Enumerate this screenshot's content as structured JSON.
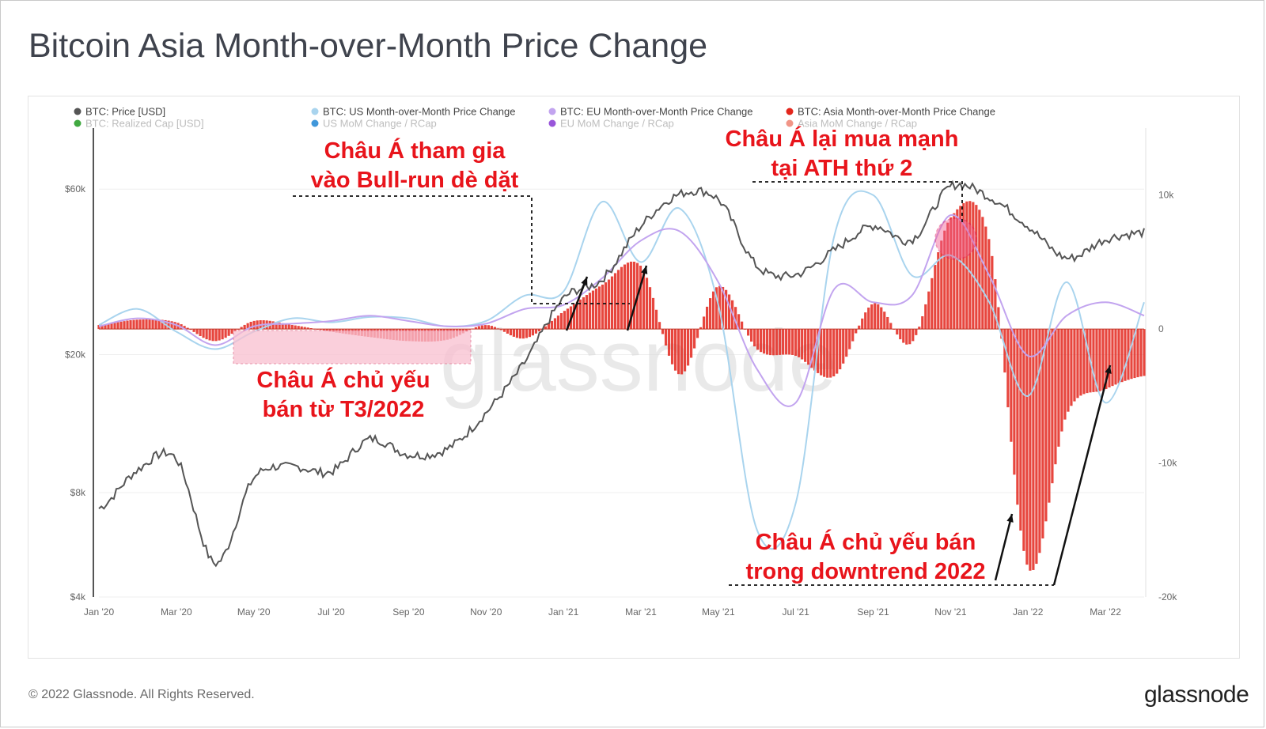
{
  "title": "Bitcoin Asia Month-over-Month Price Change",
  "footer": "© 2022 Glassnode. All Rights Reserved.",
  "brand": "glassnode",
  "watermark": "glassnode",
  "legend": [
    {
      "label": "BTC: Price [USD]",
      "color": "#555555",
      "faint": false
    },
    {
      "label": "BTC: Realized Cap [USD]",
      "color": "#2ca02c",
      "faint": true
    },
    {
      "label": "BTC: US Month-over-Month Price Change",
      "color": "#a9d4ee",
      "faint": false
    },
    {
      "label": "US MoM Change / RCap",
      "color": "#2b8cd6",
      "faint": true
    },
    {
      "label": "BTC: EU Month-over-Month Price Change",
      "color": "#c2a4ef",
      "faint": false
    },
    {
      "label": "EU MoM Change / RCap",
      "color": "#8e44d6",
      "faint": true
    },
    {
      "label": "BTC: Asia Month-over-Month Price Change",
      "color": "#e3261c",
      "faint": false
    },
    {
      "label": "Asia MoM Change / RCap",
      "color": "#f08a7a",
      "faint": true
    }
  ],
  "annotations": [
    {
      "lines": [
        "Châu Á tham gia",
        "vào Bull-run dè dặt"
      ]
    },
    {
      "lines": [
        "Châu Á lại mua mạnh",
        "tại ATH thứ 2"
      ]
    },
    {
      "lines": [
        "Châu Á chủ yếu",
        "bán từ T3/2022"
      ]
    },
    {
      "lines": [
        "Châu Á chủ yếu bán",
        "trong downtrend 2022"
      ]
    }
  ],
  "chart_data": {
    "type": "line",
    "x_ticks": [
      "Jan '20",
      "Mar '20",
      "May '20",
      "Jul '20",
      "Sep '20",
      "Nov '20",
      "Jan '21",
      "Mar '21",
      "May '21",
      "Jul '21",
      "Sep '21",
      "Nov '21",
      "Jan '22",
      "Mar '22"
    ],
    "y_left_ticks": [
      "$60k",
      "$20k",
      "$8k",
      "$4k"
    ],
    "y_left_tick_values": [
      60000,
      20000,
      8000,
      4000
    ],
    "y_left_scale": "log",
    "y_left_range": [
      4000,
      90000
    ],
    "y_right_ticks": [
      "10k",
      "0",
      "-10k",
      "-20k"
    ],
    "y_right_tick_values": [
      10000,
      0,
      -10000,
      -20000
    ],
    "y_right_range": [
      -20000,
      15000
    ],
    "months": [
      "Jan '20",
      "Feb '20",
      "Mar '20",
      "Apr '20",
      "May '20",
      "Jun '20",
      "Jul '20",
      "Aug '20",
      "Sep '20",
      "Oct '20",
      "Nov '20",
      "Dec '20",
      "Jan '21",
      "Feb '21",
      "Mar '21",
      "Apr '21",
      "May '21",
      "Jun '21",
      "Jul '21",
      "Aug '21",
      "Sep '21",
      "Oct '21",
      "Nov '21",
      "Dec '21",
      "Jan '22",
      "Feb '22",
      "Mar '22",
      "Apr '22"
    ],
    "series": [
      {
        "name": "BTC: Price [USD]",
        "axis": "left",
        "values": [
          7200,
          9300,
          10000,
          5000,
          8800,
          9500,
          9200,
          11400,
          10300,
          10700,
          13600,
          19000,
          29000,
          33000,
          47000,
          58000,
          56000,
          36000,
          34000,
          40000,
          47000,
          43000,
          61000,
          57000,
          47000,
          38000,
          43000,
          45000
        ]
      },
      {
        "name": "BTC: US Month-over-Month Price Change",
        "axis": "right",
        "values": [
          300,
          1500,
          -200,
          -1500,
          -200,
          800,
          500,
          900,
          800,
          200,
          600,
          2500,
          2800,
          9500,
          5000,
          9000,
          1800,
          -15000,
          -13000,
          7000,
          10000,
          4000,
          5500,
          2000,
          -5000,
          3500,
          -5500,
          2000
        ]
      },
      {
        "name": "BTC: EU Month-over-Month Price Change",
        "axis": "right",
        "values": [
          200,
          800,
          300,
          -1200,
          200,
          400,
          600,
          1000,
          600,
          200,
          400,
          1500,
          1800,
          3800,
          6600,
          7300,
          3500,
          -3000,
          -5500,
          3000,
          2000,
          2500,
          8500,
          4000,
          -2000,
          1000,
          2000,
          1000
        ]
      },
      {
        "name": "BTC: Asia Month-over-Month Price Change",
        "axis": "right",
        "values": [
          300,
          700,
          500,
          -900,
          600,
          300,
          -200,
          -600,
          -900,
          -800,
          300,
          -700,
          1300,
          3300,
          4700,
          -3400,
          3200,
          -1500,
          -2000,
          -3500,
          1900,
          -1000,
          8300,
          6600,
          -17800,
          -6400,
          -4500,
          -3500
        ]
      }
    ]
  }
}
